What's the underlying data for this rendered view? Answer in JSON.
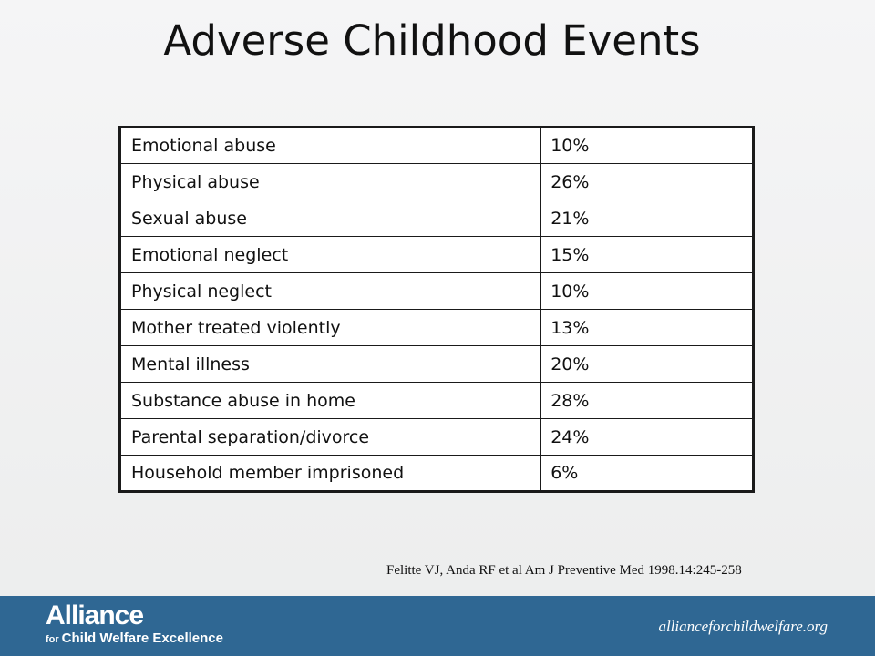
{
  "slide": {
    "title": "Adverse Childhood Events"
  },
  "table": {
    "rows": [
      {
        "event": "Emotional abuse",
        "percent": "10%"
      },
      {
        "event": "Physical abuse",
        "percent": "26%"
      },
      {
        "event": "Sexual abuse",
        "percent": "21%"
      },
      {
        "event": "Emotional neglect",
        "percent": "15%"
      },
      {
        "event": "Physical neglect",
        "percent": "10%"
      },
      {
        "event": "Mother treated violently",
        "percent": "13%"
      },
      {
        "event": "Mental illness",
        "percent": "20%"
      },
      {
        "event": "Substance abuse in home",
        "percent": "28%"
      },
      {
        "event": "Parental separation/divorce",
        "percent": "24%"
      },
      {
        "event": "Household member imprisoned",
        "percent": "6%"
      }
    ]
  },
  "citation": "Felitte VJ, Anda RF et al Am J Preventive Med 1998.14:245-258",
  "footer": {
    "logo_main": "Alliance",
    "logo_for": "for",
    "logo_sub": "Child Welfare Excellence",
    "url": "allianceforchildwelfare.org",
    "band_color": "#2f6793"
  }
}
